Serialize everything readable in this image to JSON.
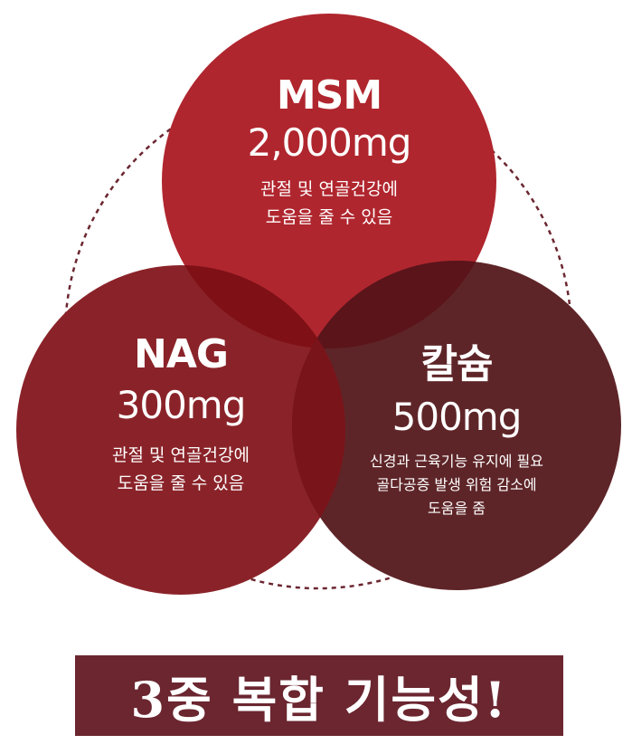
{
  "colors": {
    "msm": "#b0262e",
    "nag": "#8a2329",
    "calcium": "#5e2528",
    "banner": "#6b2630",
    "dashed": "#6b2630"
  },
  "circles": [
    {
      "name": "MSM",
      "dose": "2,000mg",
      "desc": [
        "관절 및 연골건강에",
        "도움을 줄 수 있음"
      ]
    },
    {
      "name": "NAG",
      "dose": "300mg",
      "desc": [
        "관절 및 연골건강에",
        "도움을 줄 수 있음"
      ]
    },
    {
      "name": "칼슘",
      "dose": "500mg",
      "desc": [
        "신경과 근육기능 유지에 필요",
        "골다공증 발생 위험 감소에",
        "도움을 줌"
      ]
    }
  ],
  "banner": "3중 복합 기능성!"
}
